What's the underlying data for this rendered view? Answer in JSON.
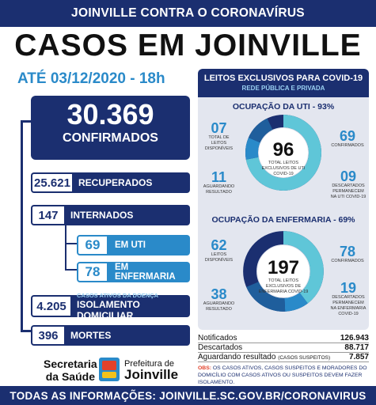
{
  "banner": "JOINVILLE CONTRA O CORONAVÍRUS",
  "title": "CASOS EM JOINVILLE",
  "date": "ATÉ 03/12/2020 - 18h",
  "confirmed": {
    "value": "30.369",
    "label": "CONFIRMADOS"
  },
  "recovered": {
    "value": "25.621",
    "label": "RECUPERADOS"
  },
  "hospitalized": {
    "value": "147",
    "label": "INTERNADOS"
  },
  "uti": {
    "value": "69",
    "label": "EM UTI"
  },
  "ward": {
    "value": "78",
    "label": "EM ENFERMARIA"
  },
  "isolation": {
    "value": "4.205",
    "small": "CASOS ATIVOS DA DOENÇA",
    "label": "ISOLAMENTO DOMICILIAR"
  },
  "deaths": {
    "value": "396",
    "label": "MORTES"
  },
  "secretaria": {
    "line1": "Secretaria",
    "line2": "da Saúde"
  },
  "prefeitura": {
    "line1": "Prefeitura de",
    "line2": "Joinville"
  },
  "panel": {
    "head": "LEITOS EXCLUSIVOS PARA COVID-19",
    "subhead": "REDE PÚBLICA E PRIVADA",
    "uti": {
      "title": "OCUPAÇÃO DA UTI - 93%",
      "total": "96",
      "total_label": "TOTAL LEITOS EXCLUSIVOS DE UTI COVID-19",
      "available": {
        "value": "07",
        "label": "TOTAL DE LEITOS DISPONÍVEIS"
      },
      "awaiting": {
        "value": "11",
        "label": "AGUARDANDO RESULTADO"
      },
      "confirmed": {
        "value": "69",
        "label": "CONFIRMADOS"
      },
      "discarded": {
        "value": "09",
        "label": "DESCARTADOS Permanecem na UTI Covid-19"
      }
    },
    "ward": {
      "title": "OCUPAÇÃO DA ENFERMARIA - 69%",
      "total": "197",
      "total_label": "TOTAL LEITOS EXCLUSIVOS DE ENFERMARIA COVID-19",
      "available": {
        "value": "62",
        "label": "LEITOS DISPONÍVEIS"
      },
      "awaiting": {
        "value": "38",
        "label": "AGUARDANDO RESULTADO"
      },
      "confirmed": {
        "value": "78",
        "label": "CONFIRMADOS"
      },
      "discarded": {
        "value": "19",
        "label": "DESCARTADOS Permanecem na enfermaria Covid-19"
      }
    }
  },
  "summary": {
    "notified": {
      "label": "Notificados",
      "value": "126.943"
    },
    "discarded": {
      "label": "Descartados",
      "value": "88.717"
    },
    "awaiting": {
      "label": "Aguardando resultado",
      "note": "(CASOS SUSPEITOS)",
      "value": "7.857"
    }
  },
  "obs": {
    "key": "OBS:",
    "text": "OS CASOS ATIVOS, CASOS SUSPEITOS E MORADORES DO DOMICÍLIO COM CASOS ATIVOS OU SUSPEITOS DEVEM FAZER ISOLAMENTO."
  },
  "footer": "TODAS AS INFORMAÇÕES: JOINVILLE.SC.GOV.BR/CORONAVIRUS",
  "colors": {
    "navy": "#1b2f70",
    "blue": "#2a8ac9",
    "light": "#5fc6d8",
    "pale": "#9ad0f2"
  }
}
